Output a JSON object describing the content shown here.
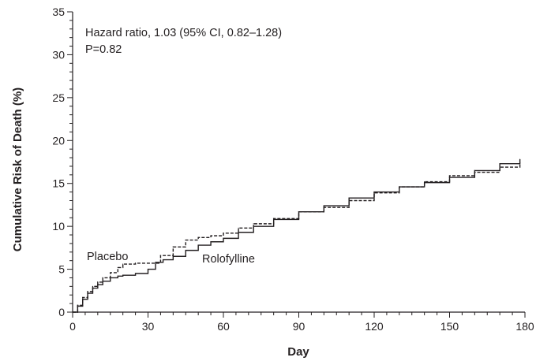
{
  "chart_data": {
    "type": "line",
    "title": "",
    "xlabel": "Day",
    "ylabel": "Cumulative Risk of Death (%)",
    "xlim": [
      0,
      180
    ],
    "ylim": [
      0,
      35
    ],
    "x_ticks": [
      0,
      30,
      60,
      90,
      120,
      150,
      180
    ],
    "y_ticks": [
      0,
      5,
      10,
      15,
      20,
      25,
      30,
      35
    ],
    "grid": false,
    "legend": "none",
    "annotations": [
      "Hazard ratio, 1.03 (95% CI, 0.82–1.28)",
      "P=0.82"
    ],
    "series": [
      {
        "name": "Rolofylline",
        "style": "solid",
        "color": "#231f20",
        "x": [
          0,
          2,
          4,
          6,
          8,
          10,
          12,
          15,
          18,
          20,
          25,
          30,
          33,
          36,
          40,
          45,
          50,
          55,
          60,
          66,
          72,
          80,
          90,
          100,
          110,
          120,
          130,
          140,
          150,
          160,
          170,
          178
        ],
        "y": [
          0,
          0.7,
          1.5,
          2.2,
          2.8,
          3.2,
          3.6,
          4.0,
          4.2,
          4.3,
          4.5,
          5.0,
          5.8,
          6.1,
          6.5,
          7.2,
          7.8,
          8.2,
          8.6,
          9.3,
          10.0,
          10.8,
          11.7,
          12.4,
          13.3,
          14.0,
          14.6,
          15.1,
          15.7,
          16.5,
          17.3,
          17.8
        ]
      },
      {
        "name": "Placebo",
        "style": "dashed",
        "color": "#231f20",
        "x": [
          0,
          2,
          4,
          6,
          8,
          10,
          12,
          15,
          18,
          20,
          25,
          30,
          35,
          40,
          45,
          50,
          55,
          60,
          66,
          72,
          80,
          90,
          100,
          110,
          120,
          130,
          140,
          150,
          160,
          170,
          178
        ],
        "y": [
          0,
          0.8,
          1.7,
          2.4,
          3.0,
          3.5,
          4.0,
          4.6,
          5.2,
          5.6,
          5.7,
          5.7,
          6.6,
          7.6,
          8.4,
          8.7,
          8.9,
          9.2,
          9.8,
          10.3,
          10.9,
          11.7,
          12.2,
          13.0,
          13.9,
          14.6,
          15.2,
          15.9,
          16.3,
          16.9,
          17.4
        ]
      }
    ]
  }
}
